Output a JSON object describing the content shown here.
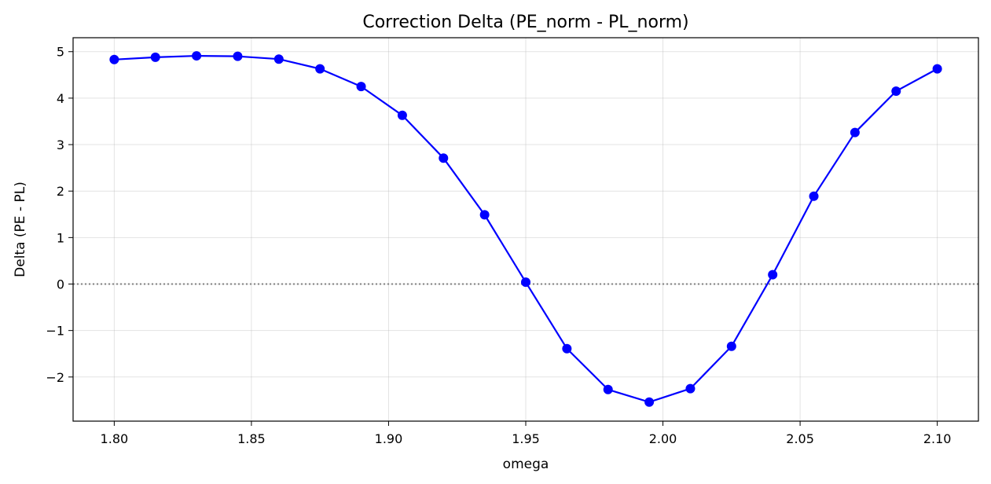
{
  "chart_data": {
    "type": "line",
    "title": "Correction Delta (PE_norm - PL_norm)",
    "xlabel": "omega",
    "ylabel": "Delta (PE - PL)",
    "xlim": [
      1.785,
      2.115
    ],
    "ylim": [
      -2.95,
      5.3
    ],
    "x_ticks": [
      1.8,
      1.85,
      1.9,
      1.95,
      2.0,
      2.05,
      2.1
    ],
    "x_tick_labels": [
      "1.80",
      "1.85",
      "1.90",
      "1.95",
      "2.00",
      "2.05",
      "2.10"
    ],
    "y_ticks": [
      -2,
      -1,
      0,
      1,
      2,
      3,
      4,
      5
    ],
    "y_tick_labels": [
      "−2",
      "−1",
      "0",
      "1",
      "2",
      "3",
      "4",
      "5"
    ],
    "grid": true,
    "reference_line": {
      "y": 0,
      "style": "dotted",
      "color": "#808080"
    },
    "series": [
      {
        "color": "#0000ff",
        "marker": "circle",
        "x": [
          1.8,
          1.815,
          1.83,
          1.845,
          1.86,
          1.875,
          1.89,
          1.905,
          1.92,
          1.935,
          1.95,
          1.965,
          1.98,
          1.995,
          2.01,
          2.025,
          2.04,
          2.055,
          2.07,
          2.085,
          2.1
        ],
        "values": [
          4.83,
          4.88,
          4.91,
          4.9,
          4.84,
          4.63,
          4.25,
          3.63,
          2.71,
          1.49,
          0.04,
          -1.39,
          -2.27,
          -2.54,
          -2.25,
          -1.34,
          0.2,
          1.89,
          3.26,
          4.15,
          4.63
        ]
      }
    ]
  }
}
